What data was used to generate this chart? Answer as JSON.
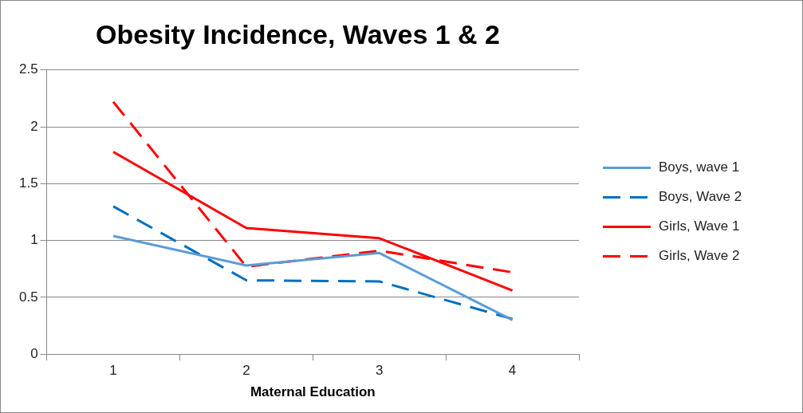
{
  "chart_data": {
    "type": "line",
    "title": "Obesity Incidence, Waves 1 & 2",
    "xlabel": "Maternal Education",
    "categories": [
      "1",
      "2",
      "3",
      "4"
    ],
    "series": [
      {
        "name": "Boys, wave 1",
        "color": "#5b9bd5",
        "line_style": "solid",
        "values": [
          1.04,
          0.78,
          0.89,
          0.3
        ]
      },
      {
        "name": "Boys, Wave 2",
        "color": "#0070c0",
        "line_style": "dashed",
        "values": [
          1.3,
          0.65,
          0.64,
          0.31
        ]
      },
      {
        "name": "Girls, Wave 1",
        "color": "#ff0000",
        "line_style": "solid",
        "values": [
          1.78,
          1.11,
          1.02,
          0.56
        ]
      },
      {
        "name": "Girls, Wave 2",
        "color": "#ff0000",
        "line_style": "dashed",
        "values": [
          2.22,
          0.77,
          0.91,
          0.72
        ]
      }
    ],
    "ylim": [
      0,
      2.5
    ],
    "yticks": [
      0,
      0.5,
      1,
      1.5,
      2,
      2.5
    ],
    "grid": "y",
    "legend": "right",
    "marker": "none"
  }
}
